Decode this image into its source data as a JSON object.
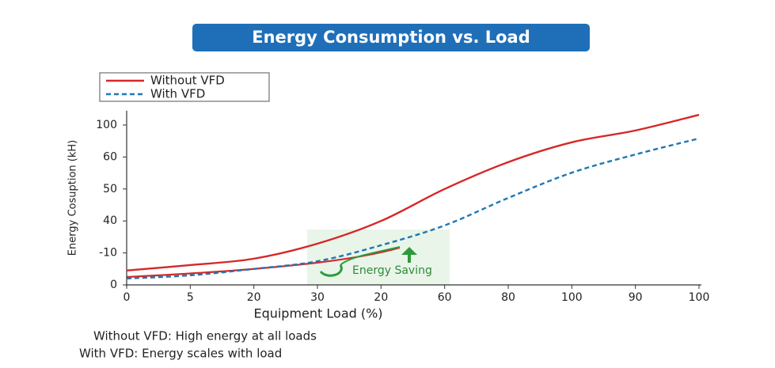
{
  "chart_data": {
    "type": "line",
    "title": "Energy Consumption vs. Load",
    "x_label": "Equipment Load (%)",
    "y_label": "Energy Cosuption (kH)",
    "x": [
      0,
      1,
      2,
      3,
      4,
      5,
      6,
      7,
      8,
      9
    ],
    "xticks": [
      {
        "value": 0,
        "label": "0"
      },
      {
        "value": 1,
        "label": "5"
      },
      {
        "value": 2,
        "label": "20"
      },
      {
        "value": 3,
        "label": "30"
      },
      {
        "value": 4,
        "label": "20"
      },
      {
        "value": 5,
        "label": "60"
      },
      {
        "value": 6,
        "label": "80"
      },
      {
        "value": 7,
        "label": "100"
      },
      {
        "value": 8,
        "label": "90"
      },
      {
        "value": 9,
        "label": "100"
      }
    ],
    "xlim": [
      0,
      9
    ],
    "ylim": [
      0,
      5.45
    ],
    "yticks": [
      {
        "value": 0,
        "label": "0"
      },
      {
        "value": 1,
        "label": "-10"
      },
      {
        "value": 2,
        "label": "40"
      },
      {
        "value": 3,
        "label": "50"
      },
      {
        "value": 4,
        "label": "60"
      },
      {
        "value": 5,
        "label": "100"
      }
    ],
    "series": [
      {
        "name": "Without VFD",
        "color": "#d62728",
        "dash": false,
        "values": [
          0.45,
          0.62,
          0.82,
          1.29,
          2.0,
          3.0,
          3.84,
          4.46,
          4.83,
          5.32
        ]
      },
      {
        "name": "With VFD",
        "color": "#1f77b4",
        "dash": true,
        "values": [
          0.2,
          0.3,
          0.5,
          0.74,
          1.24,
          1.86,
          2.72,
          3.51,
          4.08,
          4.58
        ]
      }
    ],
    "annotation": "Energy Saving",
    "notes": [
      "Without VFD: High energy at all loads",
      "With VFD: Energy scales with load"
    ]
  }
}
